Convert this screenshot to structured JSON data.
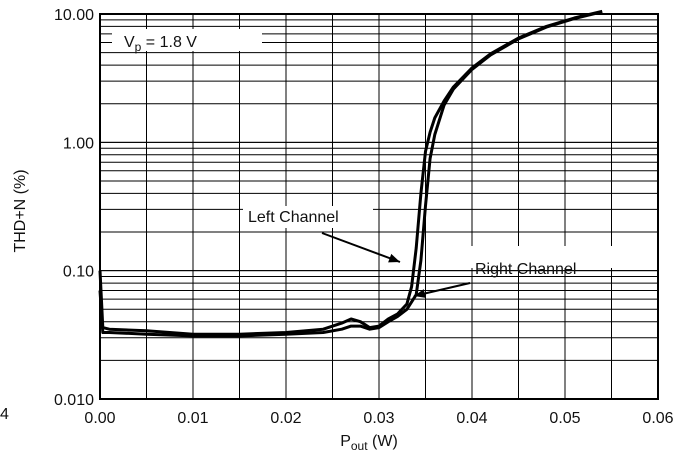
{
  "chart_data": {
    "type": "line",
    "title": "",
    "xlabel": "P",
    "xlabel_sub": "out",
    "xlabel_unit": "(W)",
    "ylabel": "THD+N (%)",
    "yscale": "log",
    "xlim": [
      0,
      0.06
    ],
    "ylim": [
      0.01,
      10
    ],
    "x_ticks": [
      0,
      0.01,
      0.02,
      0.03,
      0.04,
      0.05,
      0.06
    ],
    "x_tick_labels": [
      "0.00",
      "0.01",
      "0.02",
      "0.03",
      "0.04",
      "0.05",
      "0.06"
    ],
    "y_ticks": [
      0.01,
      0.1,
      1,
      10
    ],
    "y_tick_labels": [
      "0.010",
      "0.10",
      "1.00",
      "10.00"
    ],
    "stray_tick_label": "4",
    "grid": true,
    "condition_label": {
      "prefix": "V",
      "sub": "p",
      "suffix": " = 1.8 V"
    },
    "series": [
      {
        "name": "Left Channel",
        "x": [
          0,
          0.0003,
          0.001,
          0.005,
          0.01,
          0.015,
          0.02,
          0.024,
          0.026,
          0.027,
          0.028,
          0.029,
          0.03,
          0.031,
          0.032,
          0.033,
          0.0335,
          0.034,
          0.0345,
          0.035,
          0.0355,
          0.036,
          0.037,
          0.038,
          0.04,
          0.042,
          0.045,
          0.048,
          0.051,
          0.054
        ],
        "y": [
          0.1,
          0.036,
          0.035,
          0.034,
          0.032,
          0.032,
          0.033,
          0.035,
          0.039,
          0.042,
          0.04,
          0.036,
          0.037,
          0.042,
          0.046,
          0.055,
          0.075,
          0.15,
          0.4,
          0.85,
          1.2,
          1.55,
          2.1,
          2.7,
          3.8,
          4.9,
          6.5,
          8.0,
          9.3,
          10.5
        ]
      },
      {
        "name": "Right Channel",
        "x": [
          0,
          0.0003,
          0.001,
          0.005,
          0.01,
          0.015,
          0.02,
          0.024,
          0.026,
          0.027,
          0.028,
          0.029,
          0.03,
          0.031,
          0.032,
          0.033,
          0.034,
          0.0345,
          0.035,
          0.0355,
          0.036,
          0.037,
          0.038,
          0.04,
          0.042,
          0.045,
          0.048,
          0.051,
          0.054
        ],
        "y": [
          0.07,
          0.033,
          0.033,
          0.032,
          0.031,
          0.031,
          0.032,
          0.033,
          0.035,
          0.037,
          0.037,
          0.035,
          0.036,
          0.04,
          0.044,
          0.05,
          0.065,
          0.12,
          0.32,
          0.75,
          1.15,
          1.95,
          2.6,
          3.7,
          4.8,
          6.4,
          7.9,
          9.2,
          10.4
        ]
      }
    ],
    "annotations": [
      {
        "text": "Left Channel",
        "series": "Left Channel"
      },
      {
        "text": "Right Channel",
        "series": "Right Channel"
      }
    ]
  }
}
